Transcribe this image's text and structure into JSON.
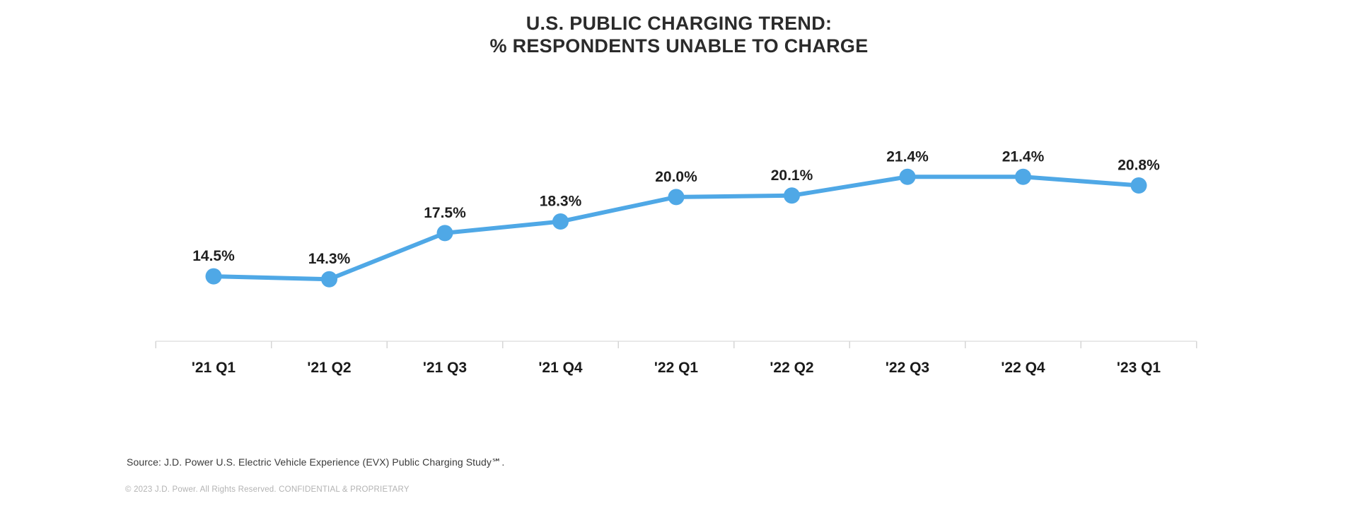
{
  "title": {
    "line1": "U.S. PUBLIC CHARGING TREND:",
    "line2": "% RESPONDENTS UNABLE TO CHARGE"
  },
  "chart_data": {
    "type": "line",
    "title": "U.S. PUBLIC CHARGING TREND: % RESPONDENTS UNABLE TO CHARGE",
    "categories": [
      "'21 Q1",
      "'21 Q2",
      "'21 Q3",
      "'21 Q4",
      "'22 Q1",
      "'22 Q2",
      "'22 Q3",
      "'22 Q4",
      "'23 Q1"
    ],
    "values": [
      14.5,
      14.3,
      17.5,
      18.3,
      20.0,
      20.1,
      21.4,
      21.4,
      20.8
    ],
    "value_labels": [
      "14.5%",
      "14.3%",
      "17.5%",
      "18.3%",
      "20.0%",
      "20.1%",
      "21.4%",
      "21.4%",
      "20.8%"
    ],
    "xlabel": "",
    "ylabel": "",
    "ylim": [
      10.0,
      26.8
    ],
    "grid": false,
    "legend": false,
    "data_labels_position": "above-points",
    "colors": {
      "line": "#4FA8E6",
      "marker": "#4FA8E6",
      "axis_line": "#e2e2e2",
      "axis_tick": "#d6d6d6",
      "value_label": "#1f1f1f",
      "category_label": "#1a1a1a"
    }
  },
  "source_note": "Source: J.D. Power U.S. Electric Vehicle Experience (EVX) Public Charging Study℠.",
  "footer": "© 2023 J.D. Power. All Rights Reserved. CONFIDENTIAL & PROPRIETARY"
}
